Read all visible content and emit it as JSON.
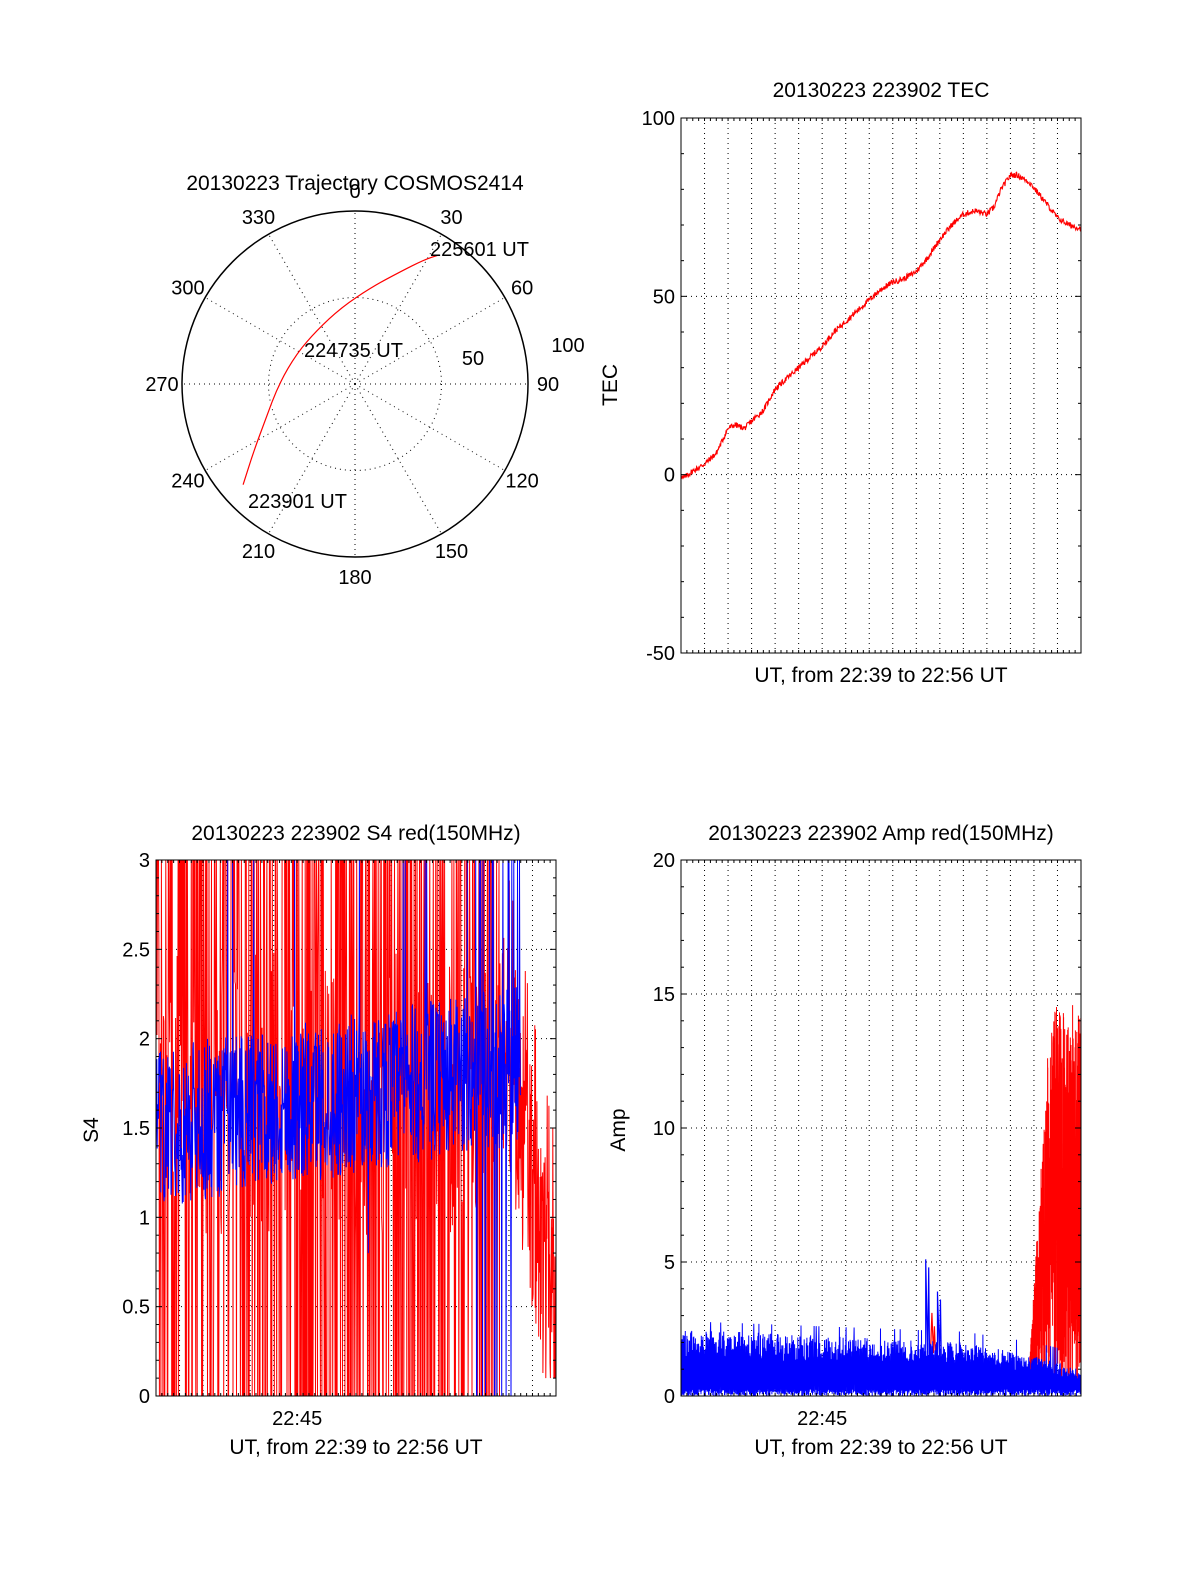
{
  "chart_data": [
    {
      "id": "trajectory",
      "type": "polar",
      "title": "20130223 Trajectory COSMOS2414",
      "angle_labels": [
        "0",
        "30",
        "60",
        "90",
        "120",
        "150",
        "180",
        "210",
        "240",
        "270",
        "300",
        "330"
      ],
      "radial_labels": [
        "50",
        "100"
      ],
      "rlim": [
        0,
        100
      ],
      "rings": [
        50,
        100
      ],
      "grid": true,
      "annotations": [
        {
          "text": "225601 UT",
          "az": 35,
          "r": 87
        },
        {
          "text": "224735 UT",
          "az": 318,
          "r": 28
        },
        {
          "text": "223901 UT",
          "az": 228,
          "r": 88
        }
      ],
      "series": [
        {
          "color": "#ff0000",
          "points": [
            {
              "az": 228,
              "r": 87
            },
            {
              "az": 236,
              "r": 71
            },
            {
              "az": 248,
              "r": 56
            },
            {
              "az": 270,
              "r": 44
            },
            {
              "az": 298,
              "r": 38
            },
            {
              "az": 324,
              "r": 38
            },
            {
              "az": 350,
              "r": 45
            },
            {
              "az": 10,
              "r": 57
            },
            {
              "az": 22,
              "r": 70
            },
            {
              "az": 29,
              "r": 82
            },
            {
              "az": 33,
              "r": 89
            }
          ]
        }
      ]
    },
    {
      "id": "tec",
      "type": "line",
      "title": "20130223 223902 TEC",
      "xlabel": "UT, from 22:39 to 22:56 UT",
      "ylabel": "TEC",
      "ylim": [
        -50,
        100
      ],
      "yticks": [
        -50,
        0,
        50,
        100
      ],
      "xlim_minutes": [
        0,
        17
      ],
      "grid": true,
      "series": [
        {
          "color": "#ff0000",
          "points": [
            [
              0,
              0
            ],
            [
              0.1,
              -1
            ],
            [
              0.5,
              1
            ],
            [
              1.0,
              3
            ],
            [
              1.5,
              6
            ],
            [
              2.0,
              13
            ],
            [
              2.3,
              14
            ],
            [
              2.7,
              13
            ],
            [
              3.0,
              15
            ],
            [
              3.5,
              18
            ],
            [
              4.0,
              24
            ],
            [
              4.5,
              27
            ],
            [
              5.0,
              30
            ],
            [
              5.5,
              33
            ],
            [
              6.0,
              36
            ],
            [
              6.5,
              40
            ],
            [
              7.0,
              43
            ],
            [
              7.5,
              46
            ],
            [
              8.0,
              49
            ],
            [
              8.5,
              52
            ],
            [
              9.0,
              54
            ],
            [
              9.5,
              55
            ],
            [
              10.0,
              57
            ],
            [
              10.5,
              61
            ],
            [
              11.0,
              66
            ],
            [
              11.5,
              70
            ],
            [
              12.0,
              73
            ],
            [
              12.5,
              74
            ],
            [
              13.0,
              73
            ],
            [
              13.3,
              75
            ],
            [
              13.6,
              80
            ],
            [
              14.0,
              84
            ],
            [
              14.3,
              84
            ],
            [
              14.8,
              82
            ],
            [
              15.3,
              78
            ],
            [
              16.0,
              72
            ],
            [
              16.5,
              70
            ],
            [
              17.0,
              69
            ]
          ]
        }
      ]
    },
    {
      "id": "s4",
      "type": "line",
      "title": "20130223 223902 S4 red(150MHz)",
      "xlabel": "UT, from 22:39 to 22:56 UT",
      "ylabel": "S4",
      "xtick_labels": [
        "22:45"
      ],
      "xtick_minutes": [
        6
      ],
      "ylim": [
        0,
        3
      ],
      "yticks": [
        "0",
        "0.5",
        "1",
        "1.5",
        "2",
        "2.5",
        "3"
      ],
      "xlim_minutes": [
        0,
        17
      ],
      "grid": true,
      "series": [
        {
          "color": "#ff0000",
          "description_range": [
            0,
            3
          ],
          "tail": [
            [
              15.0,
              2.0
            ],
            [
              15.5,
              1.2
            ],
            [
              16.0,
              0.6
            ],
            [
              16.5,
              0.3
            ],
            [
              17.0,
              0.4
            ]
          ]
        },
        {
          "color": "#0000ff",
          "mean_envelope": [
            [
              0,
              1.5
            ],
            [
              3,
              1.55
            ],
            [
              6,
              1.6
            ],
            [
              9,
              1.7
            ],
            [
              12,
              1.85
            ],
            [
              14,
              2.0
            ]
          ]
        }
      ]
    },
    {
      "id": "amp",
      "type": "line",
      "title": "20130223 223902 Amp red(150MHz)",
      "xlabel": "UT, from 22:39 to 22:56 UT",
      "ylabel": "Amp",
      "xtick_labels": [
        "22:45"
      ],
      "xtick_minutes": [
        6
      ],
      "ylim": [
        0,
        20
      ],
      "yticks": [
        0,
        5,
        10,
        15,
        20
      ],
      "xlim_minutes": [
        0,
        17
      ],
      "grid": true,
      "series": [
        {
          "color": "#0000ff",
          "baseline_level": [
            [
              0,
              2.0
            ],
            [
              6,
              1.8
            ],
            [
              12,
              1.6
            ],
            [
              15,
              1.2
            ],
            [
              17,
              0.8
            ]
          ],
          "spikes": [
            [
              10.4,
              5.1
            ],
            [
              10.9,
              3.9
            ]
          ]
        },
        {
          "color": "#ff0000",
          "burst_start_minute": 14.8,
          "burst_peak": 15.8,
          "small_spike": [
            10.6,
            3.1
          ]
        }
      ]
    }
  ]
}
